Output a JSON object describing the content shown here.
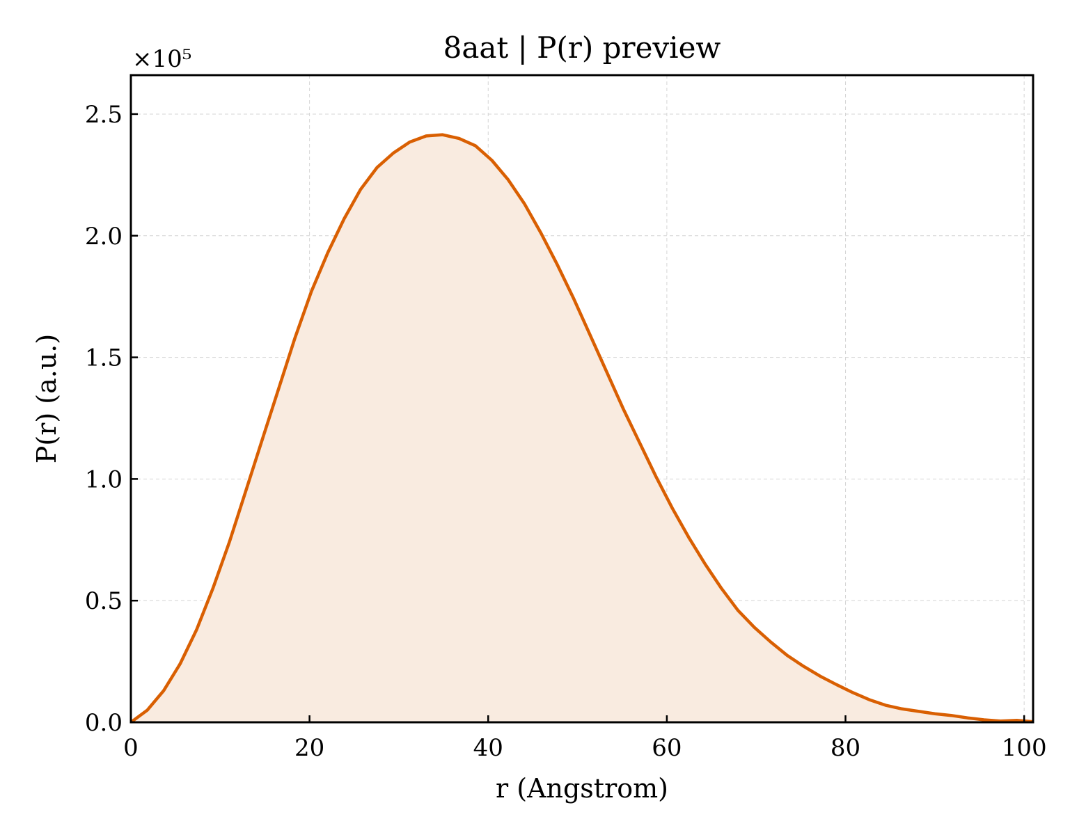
{
  "chart_data": {
    "type": "area",
    "title": "8aat | P(r) preview",
    "xlabel": "r (Angstrom)",
    "ylabel": "P(r) (a.u.)",
    "y_multiplier": "×10⁵",
    "xlim": [
      0,
      101
    ],
    "ylim": [
      0,
      2.66
    ],
    "x_ticks": [
      0,
      20,
      40,
      60,
      80,
      100
    ],
    "x_tick_labels": [
      "0",
      "20",
      "40",
      "60",
      "80",
      "100"
    ],
    "y_ticks": [
      0.0,
      0.5,
      1.0,
      1.5,
      2.0,
      2.5
    ],
    "y_tick_labels": [
      "0.0",
      "0.5",
      "1.0",
      "1.5",
      "2.0",
      "2.5"
    ],
    "grid": true,
    "colors": {
      "line": "#d95f02",
      "fill": "#f9ebe0"
    },
    "series": [
      {
        "x": [
          0,
          1.84,
          3.67,
          5.51,
          7.35,
          9.18,
          11.02,
          12.86,
          14.69,
          16.53,
          18.37,
          20.2,
          22.04,
          23.88,
          25.71,
          27.55,
          29.39,
          31.22,
          33.06,
          34.9,
          36.73,
          38.57,
          40.41,
          42.24,
          44.08,
          45.92,
          47.75,
          49.59,
          51.43,
          53.27,
          55.1,
          56.94,
          58.78,
          60.61,
          62.45,
          64.29,
          66.12,
          67.96,
          69.8,
          71.63,
          73.47,
          75.31,
          77.14,
          78.98,
          80.82,
          82.65,
          84.49,
          86.33,
          88.16,
          90,
          91.84,
          93.67,
          95.51,
          97.35,
          99.18,
          101
        ],
        "y": [
          0,
          0.05,
          0.13,
          0.24,
          0.38,
          0.55,
          0.74,
          0.95,
          1.16,
          1.37,
          1.58,
          1.77,
          1.93,
          2.07,
          2.19,
          2.28,
          2.34,
          2.385,
          2.41,
          2.415,
          2.4,
          2.37,
          2.31,
          2.23,
          2.13,
          2.01,
          1.88,
          1.74,
          1.59,
          1.44,
          1.29,
          1.15,
          1.01,
          0.88,
          0.76,
          0.65,
          0.55,
          0.46,
          0.39,
          0.33,
          0.275,
          0.23,
          0.19,
          0.155,
          0.122,
          0.093,
          0.07,
          0.055,
          0.045,
          0.035,
          0.028,
          0.018,
          0.01,
          0.005,
          0.008,
          0.002
        ]
      }
    ]
  }
}
